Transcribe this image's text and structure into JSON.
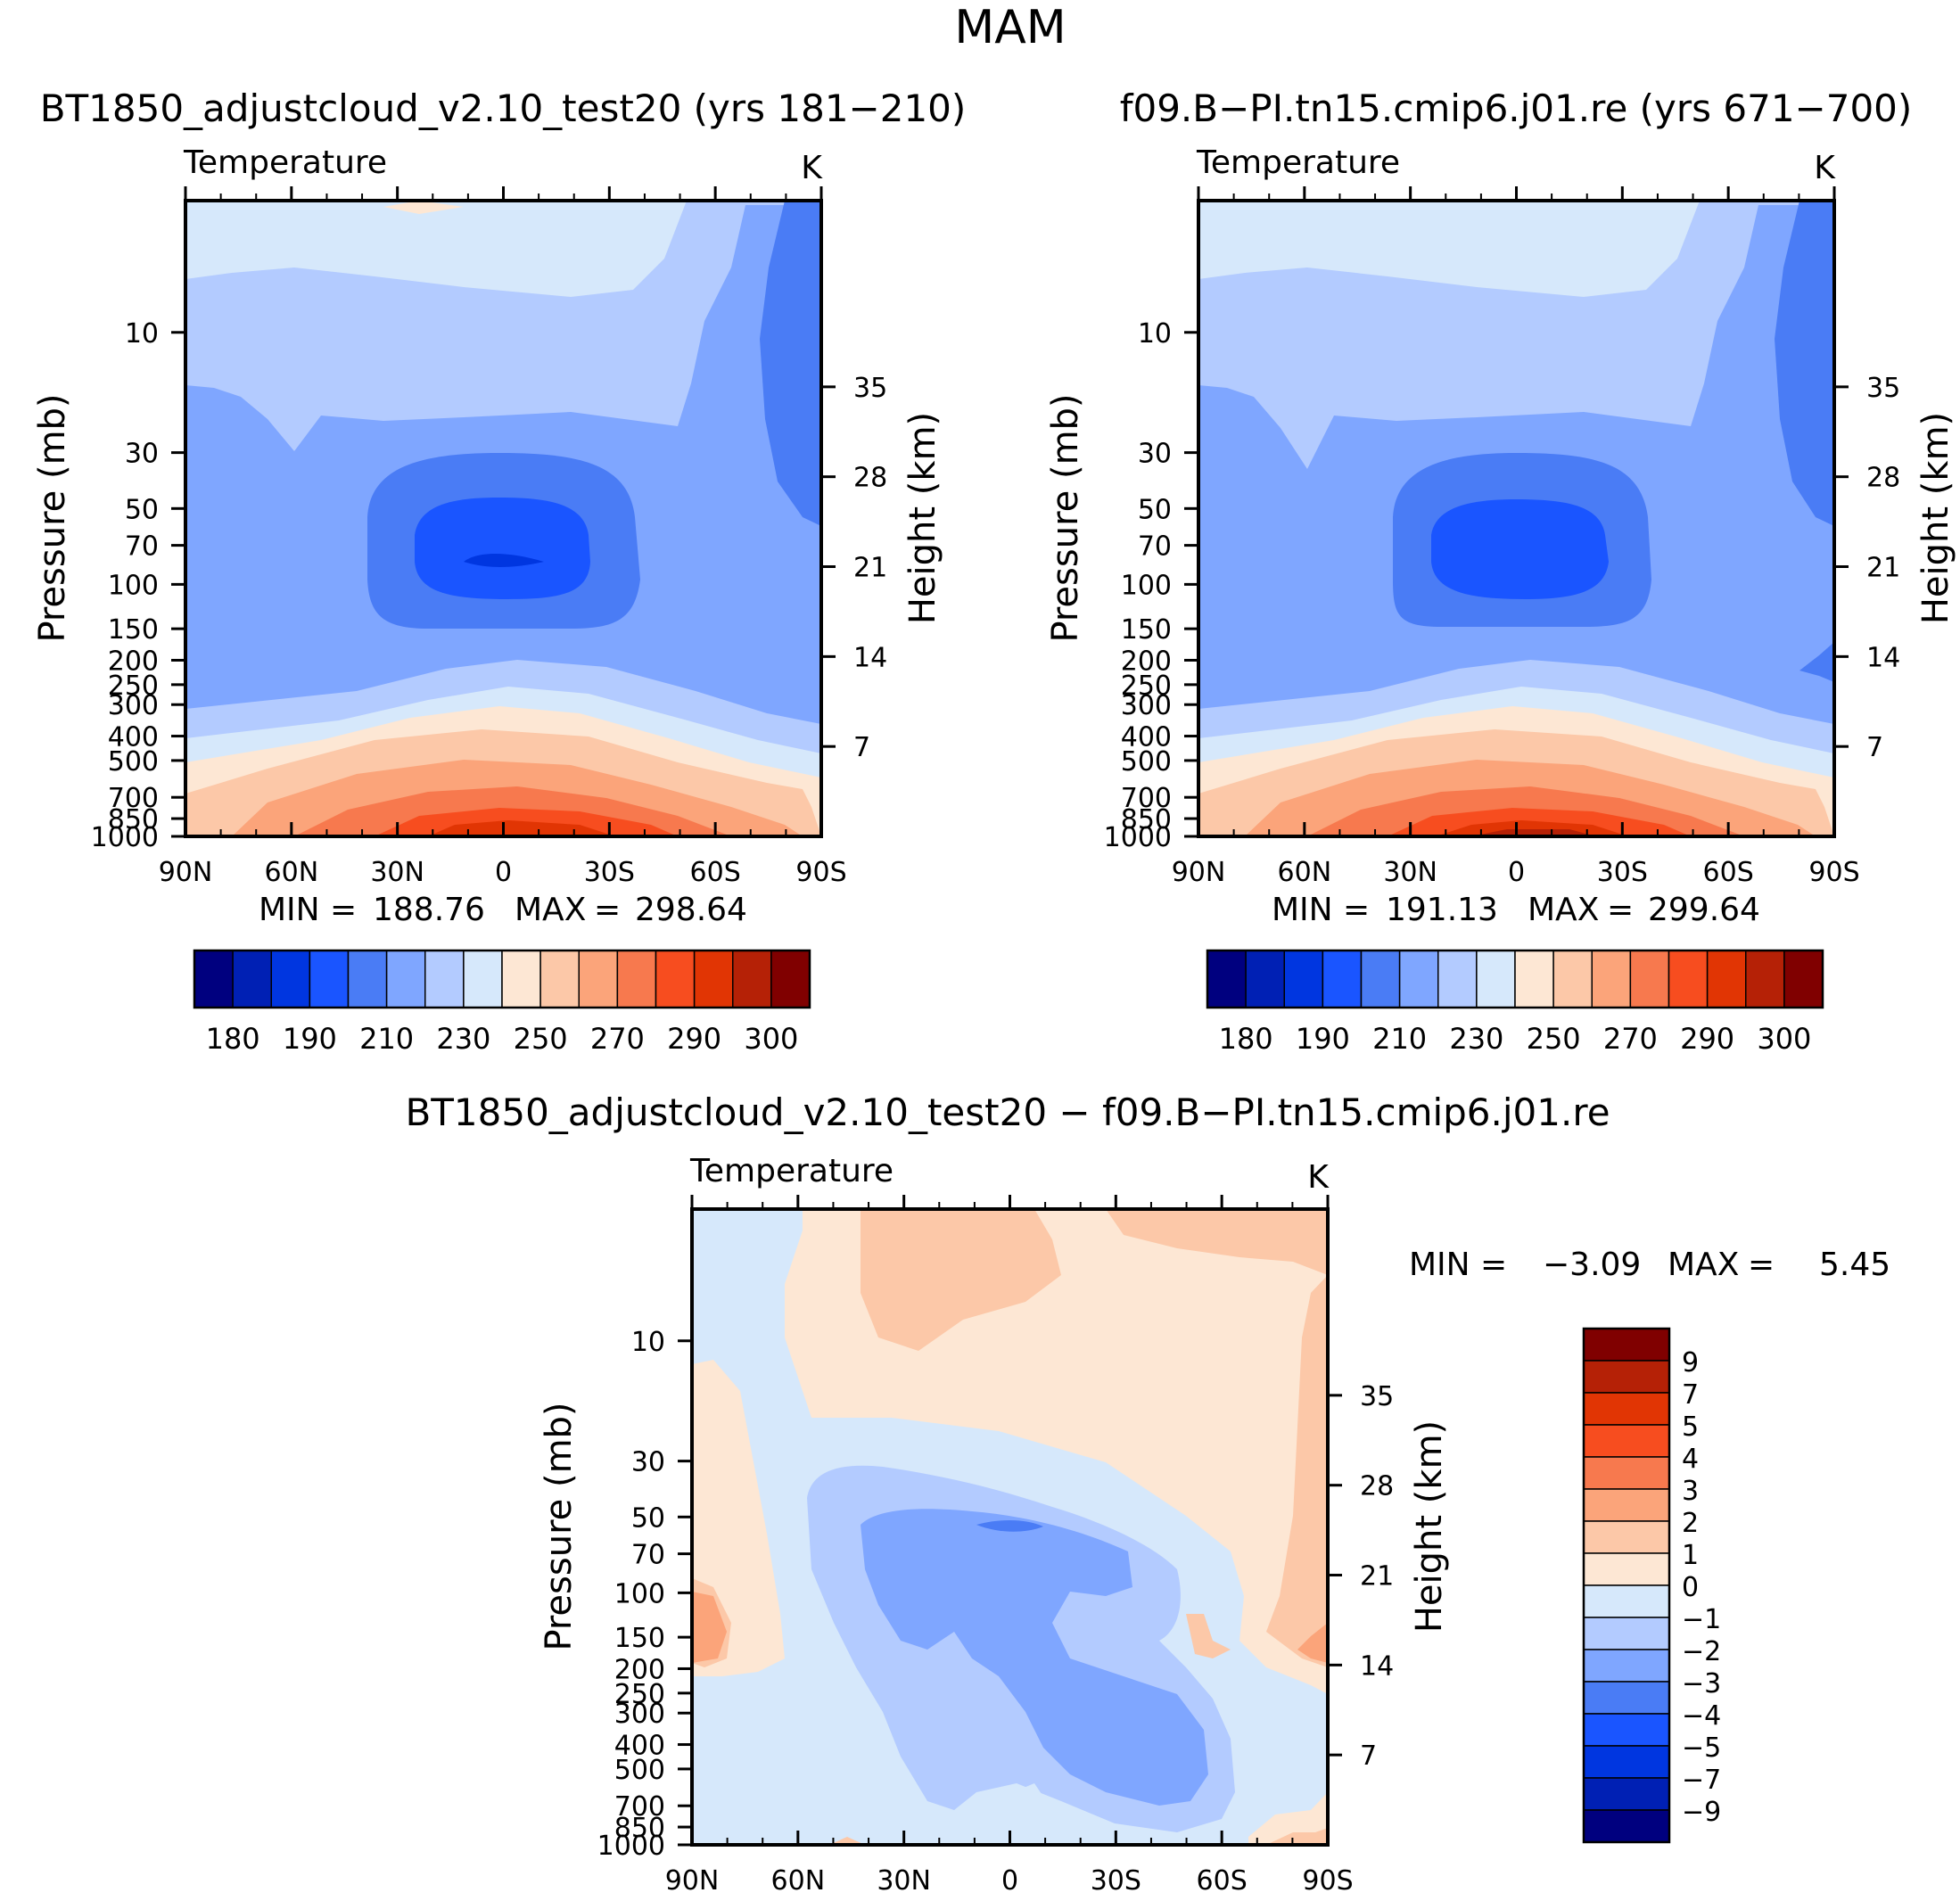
{
  "main_title": "MAM",
  "colors": {
    "abs": [
      "#00007f",
      "#0020b4",
      "#0036e0",
      "#1a55ff",
      "#4a7cf5",
      "#7fa6ff",
      "#b3cbff",
      "#d6e8fb",
      "#fde7d4",
      "#fcc8a8",
      "#fba47a",
      "#f7794e",
      "#f74d1f",
      "#e13504",
      "#b52106",
      "#800000"
    ],
    "diff": [
      "#00007f",
      "#0020b4",
      "#0036e0",
      "#1a55ff",
      "#4a7cf5",
      "#7fa6ff",
      "#b3cbff",
      "#d6e8fb",
      "#fde7d4",
      "#fcc8a8",
      "#fba47a",
      "#f7794e",
      "#f74d1f",
      "#e13504",
      "#b52106",
      "#800000"
    ]
  },
  "chart_data": [
    {
      "id": "panel-left",
      "type": "heatmap",
      "title": "BT1850_adjustcloud_v2.10_test20 (yrs 181−210)",
      "variable": "Temperature",
      "units": "K",
      "xlabel": "",
      "ylabel": "Pressure (mb)",
      "ylabel_right": "Height (km)",
      "x_ticks": [
        "90N",
        "60N",
        "30N",
        "0",
        "30S",
        "60S",
        "90S"
      ],
      "y_ticks": [
        "10",
        "30",
        "50",
        "70",
        "100",
        "150",
        "200",
        "250",
        "300",
        "400",
        "500",
        "700",
        "850",
        "1000"
      ],
      "y_ticks_right": [
        "35",
        "28",
        "21",
        "14",
        "7"
      ],
      "min_label": "MIN",
      "min_value": "188.76",
      "max_label": "MAX",
      "max_value": "298.64",
      "levels": [
        180,
        185,
        190,
        200,
        210,
        220,
        230,
        240,
        250,
        260,
        270,
        280,
        290,
        295,
        300
      ],
      "colorbar_labels": [
        "180",
        "190",
        "210",
        "230",
        "250",
        "270",
        "290",
        "300"
      ]
    },
    {
      "id": "panel-right",
      "type": "heatmap",
      "title": "f09.B−PI.tn15.cmip6.j01.re (yrs 671−700)",
      "variable": "Temperature",
      "units": "K",
      "xlabel": "",
      "ylabel": "Pressure (mb)",
      "ylabel_right": "Height (km)",
      "x_ticks": [
        "90N",
        "60N",
        "30N",
        "0",
        "30S",
        "60S",
        "90S"
      ],
      "y_ticks": [
        "10",
        "30",
        "50",
        "70",
        "100",
        "150",
        "200",
        "250",
        "300",
        "400",
        "500",
        "700",
        "850",
        "1000"
      ],
      "y_ticks_right": [
        "35",
        "28",
        "21",
        "14",
        "7"
      ],
      "min_label": "MIN",
      "min_value": "191.13",
      "max_label": "MAX",
      "max_value": "299.64",
      "levels": [
        180,
        185,
        190,
        200,
        210,
        220,
        230,
        240,
        250,
        260,
        270,
        280,
        290,
        295,
        300
      ],
      "colorbar_labels": [
        "180",
        "190",
        "210",
        "230",
        "250",
        "270",
        "290",
        "300"
      ]
    },
    {
      "id": "panel-diff",
      "type": "heatmap",
      "title": "BT1850_adjustcloud_v2.10_test20 − f09.B−PI.tn15.cmip6.j01.re",
      "variable": "Temperature",
      "units": "K",
      "xlabel": "",
      "ylabel": "Pressure (mb)",
      "ylabel_right": "Height (km)",
      "x_ticks": [
        "90N",
        "60N",
        "30N",
        "0",
        "30S",
        "60S",
        "90S"
      ],
      "y_ticks": [
        "10",
        "30",
        "50",
        "70",
        "100",
        "150",
        "200",
        "250",
        "300",
        "400",
        "500",
        "700",
        "850",
        "1000"
      ],
      "y_ticks_right": [
        "35",
        "28",
        "21",
        "14",
        "7"
      ],
      "min_label": "MIN",
      "min_value": "−3.09",
      "max_label": "MAX",
      "max_value": "5.45",
      "levels": [
        -9,
        -7,
        -5,
        -4,
        -3,
        -2,
        -1,
        0,
        1,
        2,
        3,
        4,
        5,
        7,
        9
      ],
      "colorbar_labels": [
        "9",
        "7",
        "5",
        "4",
        "3",
        "2",
        "1",
        "0",
        "−1",
        "−2",
        "−3",
        "−4",
        "−5",
        "−7",
        "−9"
      ]
    }
  ]
}
